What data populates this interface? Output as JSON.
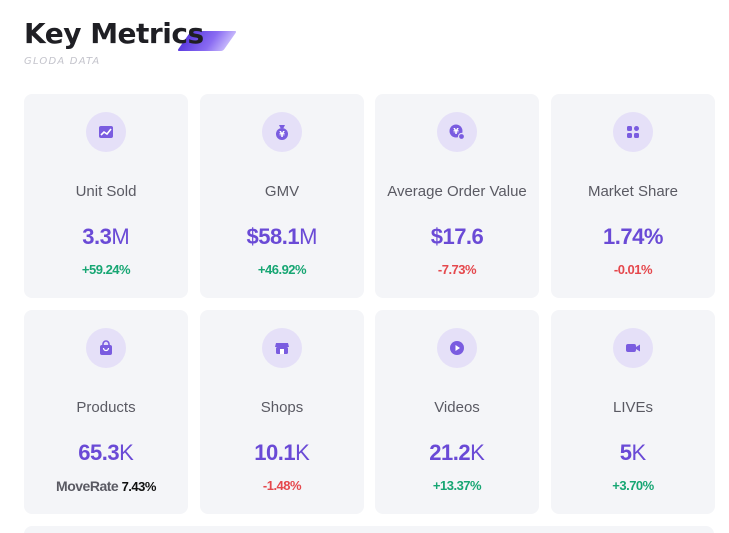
{
  "header": {
    "title": "Key Metrics",
    "subtitle": "GLODA DATA"
  },
  "colors": {
    "accent": "#6a4ad6",
    "icon_bg": "#e5e0f8",
    "card_bg": "#f4f5f8",
    "positive": "#17a673",
    "negative": "#e5484d"
  },
  "cards": [
    {
      "icon": "chart-icon",
      "label": "Unit Sold",
      "value": "3.3",
      "unit": "M",
      "change": "+59.24%"
    },
    {
      "icon": "money-bag-icon",
      "label": "GMV",
      "value": "$58.1",
      "unit": "M",
      "change": "+46.92%"
    },
    {
      "icon": "yen-coin-icon",
      "label": "Average Order Value",
      "value": "$17.6",
      "unit": "",
      "change": "-7.73%"
    },
    {
      "icon": "grid-icon",
      "label": "Market Share",
      "value": "1.74%",
      "unit": "",
      "change": "-0.01%"
    },
    {
      "icon": "shopping-bag-icon",
      "label": "Products",
      "value": "65.3",
      "unit": "K",
      "moverate_label": "MoveRate",
      "moverate_value": "7.43%"
    },
    {
      "icon": "shop-icon",
      "label": "Shops",
      "value": "10.1",
      "unit": "K",
      "change": "-1.48%"
    },
    {
      "icon": "play-icon",
      "label": "Videos",
      "value": "21.2",
      "unit": "K",
      "change": "+13.37%"
    },
    {
      "icon": "video-camera-icon",
      "label": "LIVEs",
      "value": "5",
      "unit": "K",
      "change": "+3.70%"
    }
  ]
}
